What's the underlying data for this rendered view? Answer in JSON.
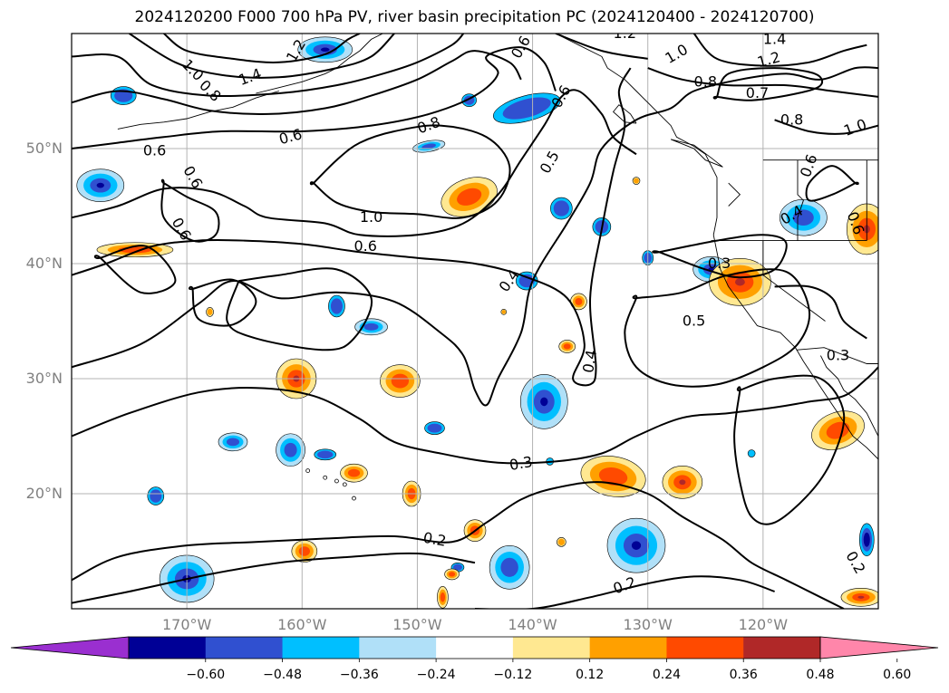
{
  "title": "2024120200 F000 700 hPa PV, river basin precipitation PC (2024120400 - 2024120700)",
  "lat_labels": [
    "50°N",
    "40°N",
    "30°N",
    "20°N"
  ],
  "lon_labels": [
    "170°W",
    "160°W",
    "150°W",
    "140°W",
    "130°W",
    "120°W"
  ],
  "colorbar": {
    "ticks": [
      "−0.60",
      "−0.48",
      "−0.36",
      "−0.24",
      "−0.12",
      "0.12",
      "0.24",
      "0.36",
      "0.48",
      "0.60"
    ],
    "colors": [
      "#9a2fd0",
      "#000096",
      "#3050d0",
      "#00bfff",
      "#b0e0f8",
      "#ffffff",
      "#ffe891",
      "#ffa000",
      "#ff4a00",
      "#b02828",
      "#ff86aa"
    ]
  },
  "contour_labels": [
    {
      "text": "1.0",
      "lon": -169.5,
      "lat": 56.8,
      "rot": 45
    },
    {
      "text": "0.8",
      "lon": -168.0,
      "lat": 55.0,
      "rot": 45
    },
    {
      "text": "1.4",
      "lon": -164.5,
      "lat": 56.2,
      "rot": -20
    },
    {
      "text": "1.2",
      "lon": -160.5,
      "lat": 58.5,
      "rot": -60
    },
    {
      "text": "0.6",
      "lon": -172.8,
      "lat": 49.8,
      "rot": 0
    },
    {
      "text": "0.6",
      "lon": -169.5,
      "lat": 47.5,
      "rot": 60
    },
    {
      "text": "0.6",
      "lon": -170.5,
      "lat": 43.0,
      "rot": 60
    },
    {
      "text": "0.6",
      "lon": -161.0,
      "lat": 51.0,
      "rot": -15
    },
    {
      "text": "0.8",
      "lon": -149.0,
      "lat": 52.0,
      "rot": -20
    },
    {
      "text": "1.0",
      "lon": -154.0,
      "lat": 44.0,
      "rot": 0
    },
    {
      "text": "0.6",
      "lon": -154.5,
      "lat": 41.5,
      "rot": 0
    },
    {
      "text": "0.4",
      "lon": -142.0,
      "lat": 38.5,
      "rot": -55
    },
    {
      "text": "0.5",
      "lon": -138.5,
      "lat": 48.8,
      "rot": -60
    },
    {
      "text": "0.4",
      "lon": -135.0,
      "lat": 31.5,
      "rot": -80
    },
    {
      "text": "0.3",
      "lon": -141.0,
      "lat": 22.6,
      "rot": -10
    },
    {
      "text": "0.2",
      "lon": -148.5,
      "lat": 16.0,
      "rot": 10
    },
    {
      "text": "0.2",
      "lon": -132.0,
      "lat": 12.0,
      "rot": -20
    },
    {
      "text": "0.5",
      "lon": -126.0,
      "lat": 35.0,
      "rot": 0
    },
    {
      "text": "0.3",
      "lon": -123.8,
      "lat": 40.0,
      "rot": 0
    },
    {
      "text": "0.3",
      "lon": -113.5,
      "lat": 32.0,
      "rot": 0
    },
    {
      "text": "0.2",
      "lon": -112.0,
      "lat": 14.0,
      "rot": 60
    },
    {
      "text": "0.8",
      "lon": -125.0,
      "lat": 55.8,
      "rot": 0
    },
    {
      "text": "0.7",
      "lon": -120.5,
      "lat": 54.8,
      "rot": 0
    },
    {
      "text": "0.8",
      "lon": -117.5,
      "lat": 52.5,
      "rot": 0
    },
    {
      "text": "1.0",
      "lon": -112.0,
      "lat": 51.8,
      "rot": -20
    },
    {
      "text": "1.4",
      "lon": -119.0,
      "lat": 59.5,
      "rot": 0
    },
    {
      "text": "1.2",
      "lon": -119.5,
      "lat": 57.7,
      "rot": -15
    },
    {
      "text": "1.0",
      "lon": -127.5,
      "lat": 58.2,
      "rot": -30
    },
    {
      "text": "1.2",
      "lon": -132.0,
      "lat": 60.0,
      "rot": 0
    },
    {
      "text": "0.6",
      "lon": -141.0,
      "lat": 58.8,
      "rot": -60
    },
    {
      "text": "0.6",
      "lon": -137.5,
      "lat": 54.5,
      "rot": -60
    },
    {
      "text": "0.4",
      "lon": -117.5,
      "lat": 44.2,
      "rot": -30
    },
    {
      "text": "0.6",
      "lon": -112.0,
      "lat": 43.5,
      "rot": 70
    },
    {
      "text": "0.6",
      "lon": -116.0,
      "lat": 48.5,
      "rot": -70
    }
  ]
}
